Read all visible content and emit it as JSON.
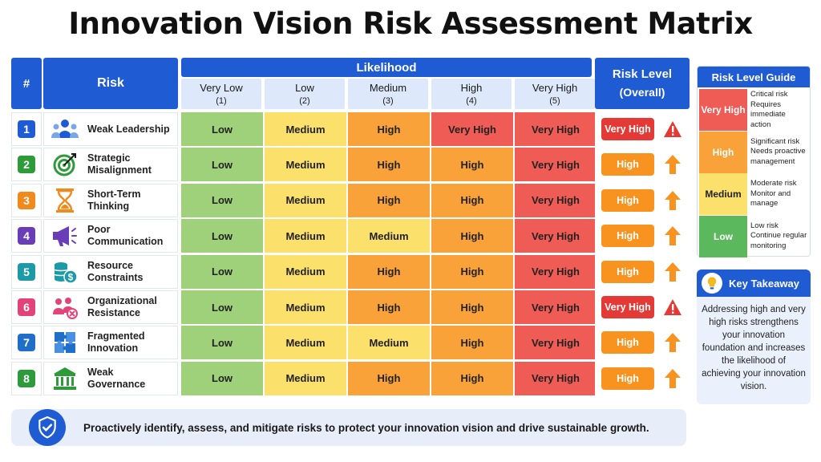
{
  "title": "Innovation Vision Risk Assessment Matrix",
  "headers": {
    "num": "#",
    "risk": "Risk",
    "likelihood": "Likelihood",
    "risk_level": "Risk Level",
    "risk_level_sub": "(Overall)",
    "columns": [
      {
        "label": "Very Low",
        "num": "(1)"
      },
      {
        "label": "Low",
        "num": "(2)"
      },
      {
        "label": "Medium",
        "num": "(3)"
      },
      {
        "label": "High",
        "num": "(4)"
      },
      {
        "label": "Very High",
        "num": "(5)"
      }
    ]
  },
  "rows": [
    {
      "num": "1",
      "color": "#1f5bd2",
      "line1": "Weak Leadership",
      "line2": "",
      "icon": "leader-icon",
      "cells": [
        "Low",
        "Medium",
        "High",
        "Very High",
        "Very High"
      ],
      "overall": "Very High",
      "overall_icon": "warning-icon"
    },
    {
      "num": "2",
      "color": "#2e9b3a",
      "line1": "Strategic",
      "line2": "Misalignment",
      "icon": "target-icon",
      "cells": [
        "Low",
        "Medium",
        "High",
        "High",
        "Very High"
      ],
      "overall": "High",
      "overall_icon": "arrow-up-icon"
    },
    {
      "num": "3",
      "color": "#f08a1c",
      "line1": "Short-Term",
      "line2": "Thinking",
      "icon": "hourglass-icon",
      "cells": [
        "Low",
        "Medium",
        "High",
        "High",
        "Very High"
      ],
      "overall": "High",
      "overall_icon": "arrow-up-icon"
    },
    {
      "num": "4",
      "color": "#6a3db8",
      "line1": "Poor",
      "line2": "Communication",
      "icon": "megaphone-icon",
      "cells": [
        "Low",
        "Medium",
        "Medium",
        "High",
        "Very High"
      ],
      "overall": "High",
      "overall_icon": "arrow-up-icon"
    },
    {
      "num": "5",
      "color": "#1c9aa8",
      "line1": "Resource",
      "line2": "Constraints",
      "icon": "coins-icon",
      "cells": [
        "Low",
        "Medium",
        "High",
        "High",
        "Very High"
      ],
      "overall": "High",
      "overall_icon": "arrow-up-icon"
    },
    {
      "num": "6",
      "color": "#e2447a",
      "line1": "Organizational",
      "line2": "Resistance",
      "icon": "people-block-icon",
      "cells": [
        "Low",
        "Medium",
        "High",
        "High",
        "Very High"
      ],
      "overall": "Very High",
      "overall_icon": "warning-icon"
    },
    {
      "num": "7",
      "color": "#1f6fc9",
      "line1": "Fragmented",
      "line2": "Innovation",
      "icon": "puzzle-icon",
      "cells": [
        "Low",
        "Medium",
        "Medium",
        "High",
        "Very High"
      ],
      "overall": "High",
      "overall_icon": "arrow-up-icon"
    },
    {
      "num": "8",
      "color": "#2e9b3a",
      "line1": "Weak",
      "line2": "Governance",
      "icon": "institution-icon",
      "cells": [
        "Low",
        "Medium",
        "High",
        "High",
        "Very High"
      ],
      "overall": "High",
      "overall_icon": "arrow-up-icon"
    }
  ],
  "guide": {
    "title": "Risk Level Guide",
    "items": [
      {
        "level": "Very High",
        "color": "#ef5b55",
        "line1": "Critical risk",
        "line2": "Requires immediate",
        "line3": "action"
      },
      {
        "level": "High",
        "color": "#f9a23a",
        "line1": "Significant risk",
        "line2": "Needs proactive",
        "line3": "management"
      },
      {
        "level": "Medium",
        "color": "#fbe06b",
        "line1": "Moderate risk",
        "line2": "Monitor and",
        "line3": "manage"
      },
      {
        "level": "Low",
        "color": "#5cb85c",
        "line1": "Low risk",
        "line2": "Continue regular",
        "line3": "monitoring"
      }
    ]
  },
  "takeaway": {
    "title": "Key Takeaway",
    "text": "Addressing high and very high risks strengthens your innovation foundation and increases the likelihood of achieving your innovation vision."
  },
  "footer": "Proactively identify, assess, and mitigate risks to protect your innovation vision and drive sustainable growth."
}
